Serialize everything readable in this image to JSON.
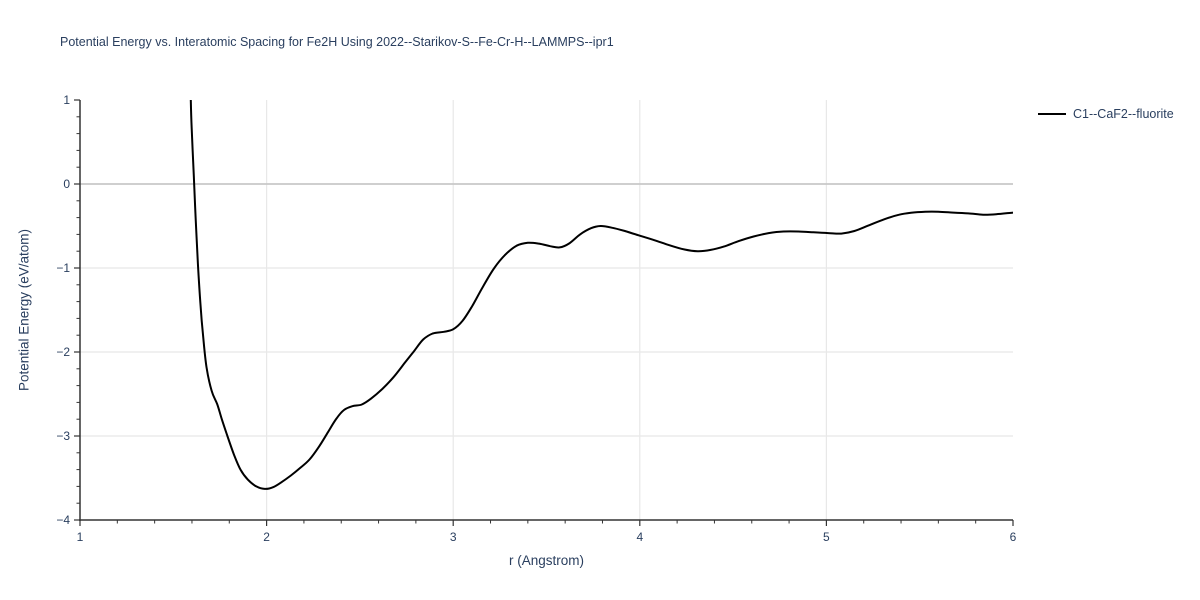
{
  "colors": {
    "text": "#2a3f5f",
    "line": "#000000",
    "grid": "#e8e8e8",
    "zeroline": "#c8c8c8",
    "axis": "#333333",
    "background": "#ffffff"
  },
  "chart_data": {
    "type": "line",
    "title": "Potential Energy vs. Interatomic Spacing for Fe2H Using 2022--Starikov-S--Fe-Cr-H--LAMMPS--ipr1",
    "xlabel": "r (Angstrom)",
    "ylabel": "Potential Energy (eV/atom)",
    "xlim": [
      1,
      6
    ],
    "ylim": [
      -4,
      1
    ],
    "xticks": [
      1,
      2,
      3,
      4,
      5,
      6
    ],
    "yticks": [
      1,
      0,
      -1,
      -2,
      -3,
      -4
    ],
    "minor_tick_step": 0.2,
    "grid": "on",
    "legend_position": "outside-top-right",
    "series": [
      {
        "name": "C1--CaF2--fluorite",
        "color": "#000000",
        "x": [
          1.585,
          1.594,
          1.601,
          1.61,
          1.62,
          1.632,
          1.645,
          1.66,
          1.678,
          1.705,
          1.735,
          1.76,
          1.79,
          1.825,
          1.86,
          1.9,
          1.945,
          1.99,
          2.035,
          2.08,
          2.13,
          2.18,
          2.23,
          2.28,
          2.33,
          2.375,
          2.415,
          2.46,
          2.51,
          2.56,
          2.62,
          2.68,
          2.74,
          2.79,
          2.84,
          2.89,
          2.95,
          3.0,
          3.05,
          3.1,
          3.16,
          3.22,
          3.28,
          3.34,
          3.4,
          3.46,
          3.52,
          3.57,
          3.62,
          3.68,
          3.74,
          3.79,
          3.85,
          3.92,
          4.0,
          4.08,
          4.16,
          4.24,
          4.31,
          4.38,
          4.45,
          4.53,
          4.61,
          4.69,
          4.77,
          4.85,
          4.93,
          5.01,
          5.08,
          5.15,
          5.23,
          5.31,
          5.39,
          5.46,
          5.53,
          5.6,
          5.68,
          5.76,
          5.84,
          5.91,
          6.0
        ],
        "y": [
          2.2,
          1.0,
          0.55,
          0.1,
          -0.42,
          -0.95,
          -1.42,
          -1.82,
          -2.18,
          -2.46,
          -2.62,
          -2.8,
          -3.0,
          -3.22,
          -3.4,
          -3.52,
          -3.6,
          -3.63,
          -3.61,
          -3.55,
          -3.47,
          -3.38,
          -3.28,
          -3.13,
          -2.95,
          -2.79,
          -2.69,
          -2.645,
          -2.625,
          -2.555,
          -2.44,
          -2.3,
          -2.13,
          -1.99,
          -1.85,
          -1.78,
          -1.76,
          -1.73,
          -1.63,
          -1.46,
          -1.22,
          -1.0,
          -0.84,
          -0.735,
          -0.7,
          -0.71,
          -0.74,
          -0.755,
          -0.71,
          -0.6,
          -0.525,
          -0.5,
          -0.52,
          -0.56,
          -0.615,
          -0.67,
          -0.73,
          -0.78,
          -0.8,
          -0.785,
          -0.745,
          -0.68,
          -0.625,
          -0.585,
          -0.565,
          -0.565,
          -0.575,
          -0.585,
          -0.59,
          -0.56,
          -0.49,
          -0.42,
          -0.365,
          -0.34,
          -0.33,
          -0.33,
          -0.34,
          -0.35,
          -0.365,
          -0.36,
          -0.34
        ]
      }
    ]
  }
}
